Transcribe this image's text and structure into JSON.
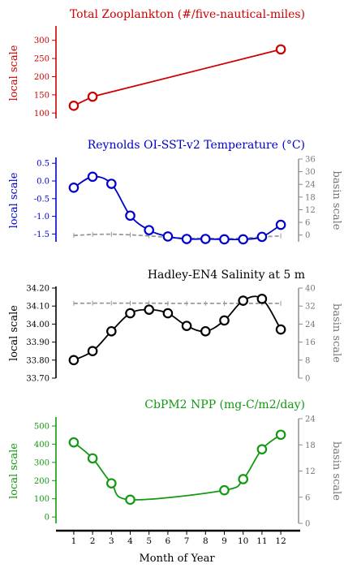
{
  "x_axis": {
    "label": "Month of Year",
    "ticks": [
      1,
      2,
      3,
      4,
      5,
      6,
      7,
      8,
      9,
      10,
      11,
      12
    ],
    "range": [
      0.4,
      12.6
    ]
  },
  "chart_data": [
    {
      "type": "line",
      "title": "Total Zooplankton (#/five-nautical-miles)",
      "color": "#cc0000",
      "ylabel": "local scale",
      "ylim": [
        85,
        335
      ],
      "yticks": [
        100,
        150,
        200,
        250,
        300
      ],
      "series": [
        {
          "x": [
            1,
            2,
            12
          ],
          "values": [
            120,
            145,
            275
          ],
          "markers": true
        }
      ]
    },
    {
      "type": "line",
      "title": "Reynolds OI-SST-v2 Temperature (°C)",
      "color": "#0000cc",
      "ylabel": "local scale",
      "ylim": [
        -1.72,
        0.62
      ],
      "yticks": [
        -1.5,
        -1.0,
        -0.5,
        0.0,
        0.5
      ],
      "ytick_labels": [
        "-1.5",
        "-1.0",
        "-0.5",
        "0.0",
        "0.5"
      ],
      "series": [
        {
          "x": [
            1,
            2,
            3,
            4,
            5,
            6,
            7,
            8,
            9,
            10,
            11,
            12
          ],
          "values": [
            -0.19,
            0.12,
            -0.08,
            -0.98,
            -1.39,
            -1.57,
            -1.64,
            -1.64,
            -1.65,
            -1.65,
            -1.58,
            -1.24
          ],
          "markers": true
        }
      ],
      "y2label": "basin scale",
      "y2lim": [
        -3.2,
        36
      ],
      "y2ticks": [
        0,
        6,
        12,
        18,
        24,
        30,
        36
      ],
      "y2series": [
        {
          "x": [
            1,
            2,
            3,
            4,
            5,
            6,
            7,
            8,
            9,
            10,
            11,
            12
          ],
          "values": [
            -0.2,
            0.3,
            0.4,
            0.1,
            -0.4,
            -1.1,
            -1.5,
            -1.6,
            -1.7,
            -1.5,
            -0.9,
            -0.4
          ],
          "style": "dashed",
          "color": "#999999"
        }
      ]
    },
    {
      "type": "line",
      "title": "Hadley-EN4 Salinity at 5 m",
      "color": "#000000",
      "ylabel": "local scale",
      "ylim": [
        33.7,
        34.2
      ],
      "yticks": [
        33.7,
        33.8,
        33.9,
        34.0,
        34.1,
        34.2
      ],
      "ytick_labels": [
        "33.70",
        "33.80",
        "33.90",
        "34.00",
        "34.10",
        "34.20"
      ],
      "series": [
        {
          "x": [
            1,
            2,
            3,
            4,
            5,
            6,
            7,
            8,
            9,
            10,
            11,
            12
          ],
          "values": [
            33.8,
            33.85,
            33.96,
            34.06,
            34.08,
            34.06,
            33.99,
            33.96,
            34.02,
            34.13,
            34.14,
            33.97
          ],
          "markers": true
        }
      ],
      "y2label": "basin scale",
      "y2lim": [
        0,
        40
      ],
      "y2ticks": [
        0,
        8,
        16,
        24,
        32,
        40
      ],
      "y2series": [
        {
          "x": [
            1,
            2,
            3,
            4,
            5,
            6,
            7,
            8,
            9,
            10,
            11,
            12
          ],
          "values": [
            33.2,
            33.3,
            33.3,
            33.3,
            33.3,
            33.2,
            33.2,
            33.2,
            33.2,
            33.2,
            33.2,
            33.2
          ],
          "style": "dashed",
          "color": "#999999"
        }
      ]
    },
    {
      "type": "line",
      "title": "CbPM2 NPP (mg-C/m2/day)",
      "color": "#119911",
      "ylabel": "local scale",
      "ylim": [
        -35,
        540
      ],
      "yticks": [
        0,
        100,
        200,
        300,
        400,
        500
      ],
      "series": [
        {
          "x": [
            1,
            2,
            3,
            4,
            9,
            10,
            11,
            12
          ],
          "values": [
            410,
            322,
            185,
            95,
            147,
            208,
            372,
            452
          ],
          "markers": true
        }
      ],
      "y2label": "basin scale",
      "y2lim": [
        0,
        24
      ],
      "y2ticks": [
        0,
        6,
        12,
        18,
        24
      ]
    }
  ]
}
